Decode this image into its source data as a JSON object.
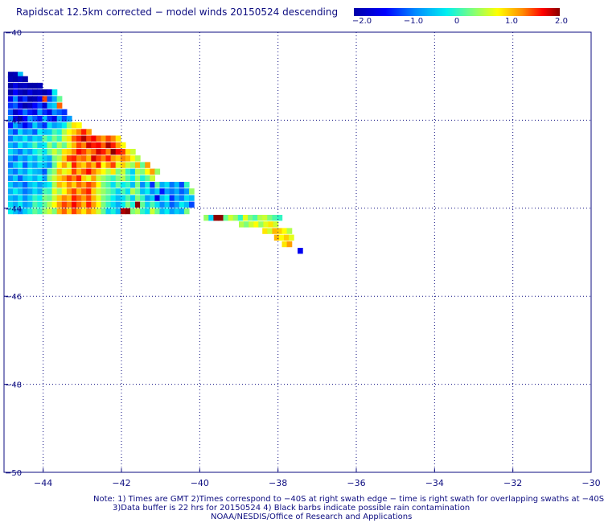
{
  "title": "Rapidscat 12.5km corrected − model winds 20150524 descending",
  "colorbar": {
    "ticks": [
      "−2.0",
      "−1.0",
      "0",
      "1.0",
      "2.0"
    ],
    "min": -2.0,
    "max": 2.0
  },
  "notes": {
    "line1": "Note: 1) Times are GMT 2)Times correspond to −40S at right swath edge − time is right swath for overlapping swaths at −40S",
    "line2": "3)Data buffer is 22 hrs for 20150524 4) Black barbs indicate possible rain contamination",
    "line3": "NOAA/NESDIS/Office of Research and Applications"
  },
  "chart_data": {
    "type": "heatmap",
    "title": "Rapidscat 12.5km corrected − model winds 20150524 descending",
    "xlim": [
      -45,
      -30
    ],
    "ylim": [
      -50,
      -40
    ],
    "xticks": [
      -44,
      -42,
      -40,
      -38,
      -36,
      -34,
      -32,
      -30
    ],
    "xtick_labels": [
      "−44",
      "−42",
      "−40",
      "−38",
      "−36",
      "−34",
      "−32",
      "−30"
    ],
    "yticks": [
      -40,
      -42,
      -44,
      -46,
      -48,
      -50
    ],
    "ytick_labels": [
      "−40",
      "−42",
      "−44",
      "−46",
      "−48",
      "−50"
    ],
    "grid": true,
    "colorbar_range": [
      -2.0,
      2.0
    ],
    "cell_size_deg": 0.125,
    "rows": [
      {
        "lat": -40.9,
        "lon0": -44.9,
        "v": [
          -2.0,
          -1.9,
          -0.5
        ]
      },
      {
        "lat": -41.0,
        "lon0": -44.9,
        "v": [
          -1.9,
          -2.0,
          -1.8,
          -2.0
        ]
      },
      {
        "lat": -41.15,
        "lon0": -44.9,
        "v": [
          -2.0,
          -1.6,
          -1.9,
          -1.8,
          -2.0,
          -2.0,
          -1.9
        ]
      },
      {
        "lat": -41.3,
        "lon0": -44.9,
        "v": [
          -2.0,
          -1.4,
          -1.8,
          -2.0,
          -1.6,
          -1.9,
          -1.8,
          -2.0,
          -1.7,
          -0.2
        ]
      },
      {
        "lat": -41.45,
        "lon0": -44.9,
        "v": [
          -1.5,
          -0.8,
          -1.7,
          -1.2,
          -2.0,
          -1.9,
          -1.5,
          1.5,
          -1.1,
          -0.6,
          0.2
        ]
      },
      {
        "lat": -41.6,
        "lon0": -44.9,
        "v": [
          -1.2,
          -1.0,
          -1.6,
          -2.0,
          -1.8,
          -1.4,
          -1.1,
          -1.7,
          -0.6,
          -0.4,
          1.4
        ]
      },
      {
        "lat": -41.75,
        "lon0": -44.9,
        "v": [
          -1.0,
          -1.8,
          -1.4,
          -0.9,
          -1.3,
          -1.6,
          -0.7,
          -1.2,
          -1.6,
          -0.8,
          -1.0,
          -1.2
        ]
      },
      {
        "lat": -41.9,
        "lon0": -44.9,
        "v": [
          -0.8,
          -1.6,
          -2.0,
          -1.4,
          -0.7,
          -1.0,
          -1.3,
          -0.5,
          -1.2,
          -1.6,
          -0.6,
          -1.1,
          -0.7
        ]
      },
      {
        "lat": -42.05,
        "lon0": -44.9,
        "v": [
          -1.3,
          -0.6,
          -1.0,
          -1.5,
          -1.1,
          -0.4,
          -0.9,
          -1.2,
          -0.3,
          -0.7,
          -0.5,
          -0.2,
          0.4,
          0.9,
          0.8
        ]
      },
      {
        "lat": -42.2,
        "lon0": -44.9,
        "v": [
          -0.7,
          -1.1,
          -0.3,
          -0.8,
          -0.6,
          -1.0,
          -0.2,
          -0.5,
          -0.4,
          0.1,
          -0.1,
          0.5,
          0.8,
          1.0,
          1.3,
          1.6,
          1.2
        ]
      },
      {
        "lat": -42.35,
        "lon0": -44.9,
        "v": [
          -0.9,
          -0.4,
          -0.6,
          -0.2,
          -0.7,
          -0.3,
          -0.5,
          0.2,
          -0.1,
          0.3,
          0.0,
          0.6,
          0.9,
          1.4,
          1.6,
          1.9,
          1.5,
          1.7,
          1.4,
          1.2,
          1.5,
          1.3,
          0.9
        ]
      },
      {
        "lat": -42.5,
        "lon0": -44.9,
        "v": [
          -0.5,
          -0.8,
          -0.2,
          -0.6,
          -0.3,
          0.1,
          -0.4,
          -0.2,
          0.4,
          0.0,
          0.5,
          0.2,
          0.7,
          1.1,
          1.5,
          1.3,
          1.8,
          1.6,
          1.7,
          1.4,
          1.9,
          1.6,
          1.2,
          0.8
        ]
      },
      {
        "lat": -42.65,
        "lon0": -44.9,
        "v": [
          -0.3,
          -0.6,
          -0.9,
          -0.4,
          -0.7,
          -0.2,
          0.0,
          -0.3,
          0.2,
          0.6,
          0.3,
          0.9,
          1.0,
          1.3,
          1.7,
          1.5,
          1.2,
          1.4,
          1.8,
          1.6,
          1.3,
          2.0,
          1.7,
          1.5,
          0.9,
          0.6
        ]
      },
      {
        "lat": -42.8,
        "lon0": -44.9,
        "v": [
          -0.7,
          -1.0,
          -0.5,
          -0.8,
          -0.3,
          -0.6,
          -0.1,
          -0.4,
          -0.6,
          0.3,
          0.5,
          1.0,
          1.5,
          1.6,
          1.3,
          1.4,
          1.1,
          1.8,
          1.5,
          1.3,
          1.6,
          1.2,
          1.0,
          1.3,
          1.1,
          0.8,
          0.5
        ]
      },
      {
        "lat": -42.95,
        "lon0": -44.9,
        "v": [
          -0.9,
          -0.5,
          -0.2,
          -1.0,
          -0.4,
          -0.7,
          -0.3,
          -0.5,
          -0.8,
          0.2,
          0.8,
          1.2,
          0.7,
          1.6,
          1.2,
          1.0,
          1.4,
          1.1,
          1.6,
          0.8,
          1.2,
          1.5,
          0.7,
          1.0,
          0.6,
          0.4,
          1.1,
          0.2,
          1.2
        ]
      },
      {
        "lat": -43.1,
        "lon0": -44.9,
        "v": [
          -0.6,
          -0.9,
          -0.4,
          -0.7,
          -0.2,
          -0.5,
          -0.6,
          -1.0,
          0.1,
          0.4,
          1.1,
          0.7,
          0.9,
          1.5,
          1.1,
          1.4,
          1.7,
          1.3,
          1.0,
          0.8,
          0.5,
          0.9,
          0.3,
          0.6,
          0.0,
          -0.4,
          0.5,
          0.3,
          0.8,
          1.2,
          0.4
        ]
      },
      {
        "lat": -43.25,
        "lon0": -44.9,
        "v": [
          -0.8,
          -0.4,
          -1.0,
          -0.5,
          -0.3,
          -0.6,
          -0.2,
          -0.7,
          0.3,
          0.6,
          1.0,
          1.2,
          1.5,
          1.3,
          1.6,
          1.0,
          0.7,
          1.2,
          0.6,
          0.4,
          0.2,
          0.0,
          0.3,
          0.5,
          0.1,
          -0.2,
          0.4,
          -0.1,
          0.2,
          0.6
        ]
      },
      {
        "lat": -43.4,
        "lon0": -44.9,
        "v": [
          -0.4,
          -0.8,
          -0.6,
          -1.0,
          -0.5,
          -0.3,
          -0.7,
          -0.4,
          -0.2,
          0.5,
          1.1,
          0.9,
          1.3,
          1.0,
          1.4,
          1.2,
          1.5,
          1.3,
          0.8,
          0.3,
          0.1,
          -0.3,
          0.2,
          -0.2,
          0.0,
          -0.5,
          0.3,
          -0.8,
          -0.1,
          -1.2,
          0.2,
          -0.6,
          -0.3,
          -0.9,
          -0.5,
          -1.1,
          0.0
        ]
      },
      {
        "lat": -43.55,
        "lon0": -44.9,
        "v": [
          -0.6,
          -0.2,
          -0.5,
          -0.9,
          -0.7,
          -0.3,
          -0.6,
          0.1,
          0.0,
          0.7,
          0.4,
          0.8,
          1.2,
          1.5,
          1.1,
          1.4,
          1.6,
          1.0,
          0.6,
          0.4,
          0.2,
          0.0,
          -0.4,
          0.1,
          -0.3,
          0.5,
          0.2,
          -0.5,
          -0.2,
          -0.8,
          -0.4,
          -1.3,
          -0.7,
          -0.9,
          -0.6,
          -1.0,
          -0.7,
          0.4
        ]
      },
      {
        "lat": -43.7,
        "lon0": -44.9,
        "v": [
          -0.5,
          -0.7,
          -0.3,
          -0.8,
          -0.4,
          0.0,
          -0.2,
          0.3,
          0.2,
          0.6,
          1.0,
          1.3,
          1.1,
          1.6,
          1.4,
          1.2,
          1.5,
          1.1,
          0.7,
          0.3,
          0.1,
          -0.2,
          -0.5,
          -0.3,
          0.1,
          -0.4,
          0.3,
          0.0,
          -0.7,
          -0.4,
          -1.6,
          -0.5,
          -0.2,
          -1.2,
          -0.6,
          -0.9,
          -0.3,
          -0.5
        ]
      },
      {
        "lat": -43.85,
        "lon0": -44.9,
        "v": [
          -0.3,
          -0.6,
          -0.2,
          -0.7,
          -0.5,
          0.1,
          -0.1,
          0.2,
          0.5,
          0.8,
          1.2,
          1.5,
          1.3,
          1.7,
          1.4,
          1.1,
          1.6,
          1.2,
          0.8,
          0.3,
          0.0,
          -0.3,
          -0.6,
          -0.2,
          0.3,
          -0.1,
          2.0,
          0.2,
          -0.4,
          0.1,
          -0.3,
          -0.8,
          -0.4,
          -1.0,
          -0.7,
          -0.2,
          -0.5,
          -1.1
        ]
      },
      {
        "lat": -44.0,
        "lon0": -44.9,
        "v": [
          -0.2,
          -0.5,
          -0.8,
          -0.4,
          -0.1,
          0.2,
          0.0,
          0.4,
          0.6,
          0.3,
          1.1,
          1.4,
          1.0,
          1.5,
          1.2,
          0.9,
          1.3,
          1.0,
          0.6,
          0.2,
          -0.4,
          -0.1,
          -0.5,
          1.9,
          2.0,
          0.3,
          0.5,
          0.0,
          -0.3,
          0.6,
          0.2,
          -0.5,
          -0.2,
          -0.7,
          -0.4,
          -0.6,
          0.3
        ]
      },
      {
        "lat": -44.15,
        "lon0": -39.9,
        "v": [
          0.4,
          -0.4,
          2.0,
          2.0,
          0.2,
          0.6,
          0.4,
          0.0,
          0.7,
          0.3,
          0.1,
          0.5,
          0.6,
          0.3,
          0.1,
          0.0
        ]
      },
      {
        "lat": -44.3,
        "lon0": -39.0,
        "v": [
          0.5,
          0.3,
          0.6,
          0.8,
          0.4,
          0.7,
          0.9,
          0.6
        ]
      },
      {
        "lat": -44.45,
        "lon0": -38.4,
        "v": [
          0.9,
          0.6,
          1.1,
          1.0,
          0.8,
          0.5
        ]
      },
      {
        "lat": -44.6,
        "lon0": -38.1,
        "v": [
          1.1,
          0.8,
          1.0,
          0.7
        ]
      },
      {
        "lat": -44.75,
        "lon0": -37.9,
        "v": [
          0.9,
          1.2
        ]
      },
      {
        "lat": -44.9,
        "lon0": -37.5,
        "v": [
          -1.5
        ]
      }
    ]
  }
}
